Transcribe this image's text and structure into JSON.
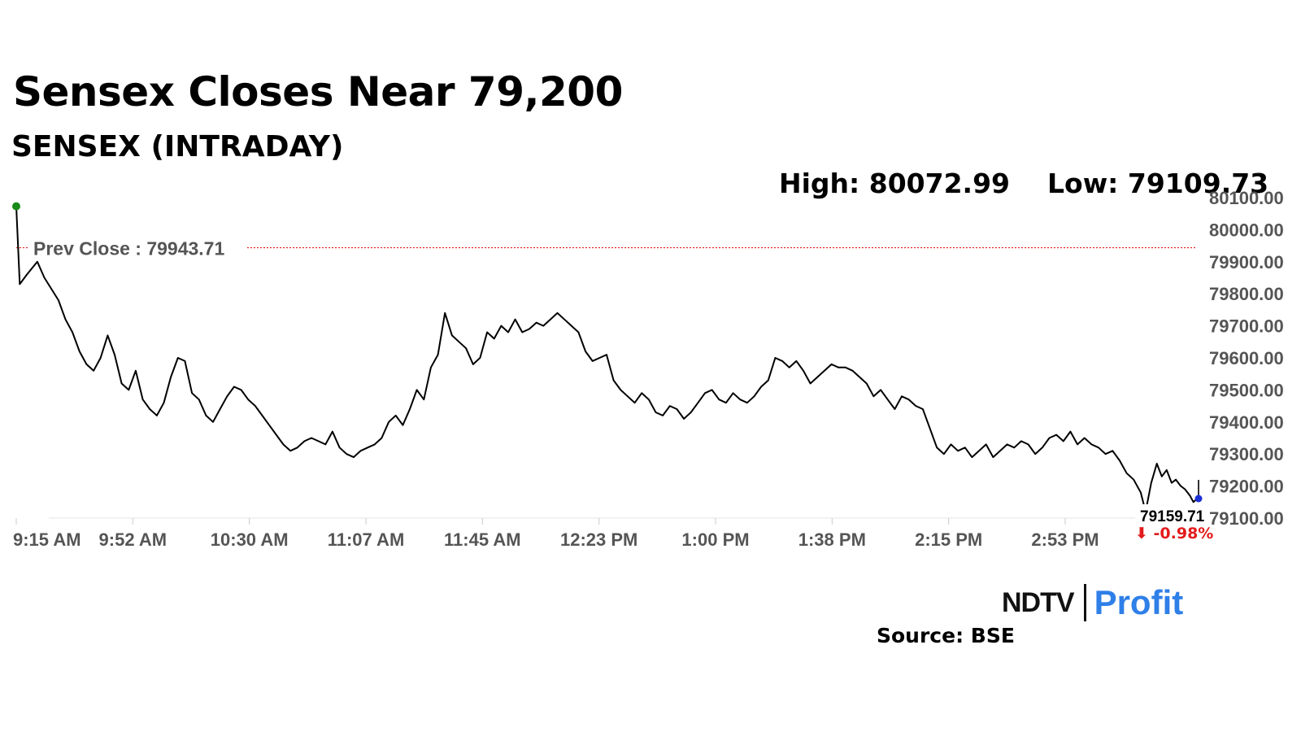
{
  "title": "Sensex Closes Near 79,200",
  "subtitle": "SENSEX (INTRADAY)",
  "high_label": "High: 80072.99",
  "low_label": "Low: 79109.73",
  "source": "Source: BSE",
  "logo": {
    "left": "NDTV",
    "right": "Profit"
  },
  "colors": {
    "line": "#000000",
    "prev_close": "#e31b1b",
    "open_marker": "#1a8a1a",
    "close_marker": "#e31b1b",
    "last_marker": "#1b2fd6",
    "change": "#e31b1b",
    "logo_blue": "#2f7fe8",
    "logo_pink": "#e8428f"
  },
  "chart_data": {
    "type": "line",
    "title": "SENSEX (INTRADAY)",
    "x_tick_labels": [
      "9:15 AM",
      "9:52 AM",
      "10:30 AM",
      "11:07 AM",
      "11:45 AM",
      "12:23 PM",
      "1:00 PM",
      "1:38 PM",
      "2:15 PM",
      "2:53 PM"
    ],
    "ylim": [
      79100,
      80100
    ],
    "y_tick_values": [
      80100,
      80000,
      79900,
      79800,
      79700,
      79600,
      79500,
      79400,
      79300,
      79200,
      79100
    ],
    "y_tick_labels": [
      "80100.00",
      "80000.00",
      "79900.00",
      "79800.00",
      "79700.00",
      "79600.00",
      "79500.00",
      "79400.00",
      "79300.00",
      "79200.00",
      "79100.00"
    ],
    "prev_close": 79943.71,
    "prev_close_label": "Prev Close : 79943.71",
    "high": 80072.99,
    "low": 79109.73,
    "close": 79159.71,
    "close_label": "79159.71",
    "change_label": "⬇ -0.98%",
    "grid": false,
    "series": [
      {
        "values": [
          [
            0,
            80072.99
          ],
          [
            0.5,
            79830
          ],
          [
            1.5,
            79860
          ],
          [
            3,
            79900
          ],
          [
            4,
            79850
          ],
          [
            6,
            79780
          ],
          [
            7,
            79720
          ],
          [
            8,
            79680
          ],
          [
            9,
            79620
          ],
          [
            10,
            79580
          ],
          [
            11,
            79560
          ],
          [
            12,
            79600
          ],
          [
            13,
            79670
          ],
          [
            14,
            79610
          ],
          [
            15,
            79520
          ],
          [
            16,
            79500
          ],
          [
            17,
            79560
          ],
          [
            18,
            79470
          ],
          [
            19,
            79440
          ],
          [
            20,
            79420
          ],
          [
            21,
            79460
          ],
          [
            22,
            79540
          ],
          [
            23,
            79600
          ],
          [
            24,
            79590
          ],
          [
            25,
            79490
          ],
          [
            26,
            79470
          ],
          [
            27,
            79420
          ],
          [
            28,
            79400
          ],
          [
            29,
            79440
          ],
          [
            30,
            79480
          ],
          [
            31,
            79510
          ],
          [
            32,
            79500
          ],
          [
            33,
            79470
          ],
          [
            34,
            79450
          ],
          [
            35,
            79420
          ],
          [
            36,
            79390
          ],
          [
            37,
            79360
          ],
          [
            38,
            79330
          ],
          [
            39,
            79310
          ],
          [
            40,
            79320
          ],
          [
            41,
            79340
          ],
          [
            42,
            79350
          ],
          [
            43,
            79340
          ],
          [
            44,
            79330
          ],
          [
            45,
            79370
          ],
          [
            46,
            79320
          ],
          [
            47,
            79300
          ],
          [
            48,
            79290
          ],
          [
            49,
            79310
          ],
          [
            50,
            79320
          ],
          [
            51,
            79330
          ],
          [
            52,
            79350
          ],
          [
            53,
            79400
          ],
          [
            54,
            79420
          ],
          [
            55,
            79390
          ],
          [
            56,
            79440
          ],
          [
            57,
            79500
          ],
          [
            58,
            79470
          ],
          [
            59,
            79570
          ],
          [
            60,
            79610
          ],
          [
            61,
            79740
          ],
          [
            62,
            79670
          ],
          [
            63,
            79650
          ],
          [
            64,
            79630
          ],
          [
            65,
            79580
          ],
          [
            66,
            79600
          ],
          [
            67,
            79680
          ],
          [
            68,
            79660
          ],
          [
            69,
            79700
          ],
          [
            70,
            79680
          ],
          [
            71,
            79720
          ],
          [
            72,
            79680
          ],
          [
            73,
            79690
          ],
          [
            74,
            79710
          ],
          [
            75,
            79700
          ],
          [
            76,
            79720
          ],
          [
            77,
            79740
          ],
          [
            78,
            79720
          ],
          [
            79,
            79700
          ],
          [
            80,
            79680
          ],
          [
            81,
            79620
          ],
          [
            82,
            79590
          ],
          [
            83,
            79600
          ],
          [
            84,
            79610
          ],
          [
            85,
            79530
          ],
          [
            86,
            79500
          ],
          [
            87,
            79480
          ],
          [
            88,
            79460
          ],
          [
            89,
            79490
          ],
          [
            90,
            79470
          ],
          [
            91,
            79430
          ],
          [
            92,
            79420
          ],
          [
            93,
            79450
          ],
          [
            94,
            79440
          ],
          [
            95,
            79410
          ],
          [
            96,
            79430
          ],
          [
            97,
            79460
          ],
          [
            98,
            79490
          ],
          [
            99,
            79500
          ],
          [
            100,
            79470
          ],
          [
            101,
            79460
          ],
          [
            102,
            79490
          ],
          [
            103,
            79470
          ],
          [
            104,
            79460
          ],
          [
            105,
            79480
          ],
          [
            106,
            79510
          ],
          [
            107,
            79530
          ],
          [
            108,
            79600
          ],
          [
            109,
            79590
          ],
          [
            110,
            79570
          ],
          [
            111,
            79590
          ],
          [
            112,
            79560
          ],
          [
            113,
            79520
          ],
          [
            114,
            79540
          ],
          [
            115,
            79560
          ],
          [
            116,
            79580
          ],
          [
            117,
            79570
          ],
          [
            118,
            79570
          ],
          [
            119,
            79560
          ],
          [
            120,
            79540
          ],
          [
            121,
            79520
          ],
          [
            122,
            79480
          ],
          [
            123,
            79500
          ],
          [
            124,
            79470
          ],
          [
            125,
            79440
          ],
          [
            126,
            79480
          ],
          [
            127,
            79470
          ],
          [
            128,
            79450
          ],
          [
            129,
            79440
          ],
          [
            130,
            79380
          ],
          [
            131,
            79320
          ],
          [
            132,
            79300
          ],
          [
            133,
            79330
          ],
          [
            134,
            79310
          ],
          [
            135,
            79320
          ],
          [
            136,
            79290
          ],
          [
            137,
            79310
          ],
          [
            138,
            79330
          ],
          [
            139,
            79290
          ],
          [
            140,
            79310
          ],
          [
            141,
            79330
          ],
          [
            142,
            79320
          ],
          [
            143,
            79340
          ],
          [
            144,
            79330
          ],
          [
            145,
            79300
          ],
          [
            146,
            79320
          ],
          [
            147,
            79350
          ],
          [
            148,
            79360
          ],
          [
            149,
            79340
          ],
          [
            150,
            79370
          ],
          [
            151,
            79330
          ],
          [
            152,
            79350
          ],
          [
            153,
            79330
          ],
          [
            154,
            79320
          ],
          [
            155,
            79300
          ],
          [
            156,
            79310
          ],
          [
            157,
            79280
          ],
          [
            158,
            79240
          ],
          [
            159,
            79220
          ],
          [
            160,
            79180
          ],
          [
            160.7,
            79120
          ],
          [
            161.5,
            79210
          ],
          [
            162.3,
            79270
          ],
          [
            163,
            79230
          ],
          [
            163.7,
            79250
          ],
          [
            164.4,
            79210
          ],
          [
            165,
            79220
          ],
          [
            165.7,
            79200
          ],
          [
            166.3,
            79190
          ],
          [
            167,
            79170
          ],
          [
            167.5,
            79150
          ],
          [
            168,
            79160
          ]
        ]
      }
    ]
  }
}
